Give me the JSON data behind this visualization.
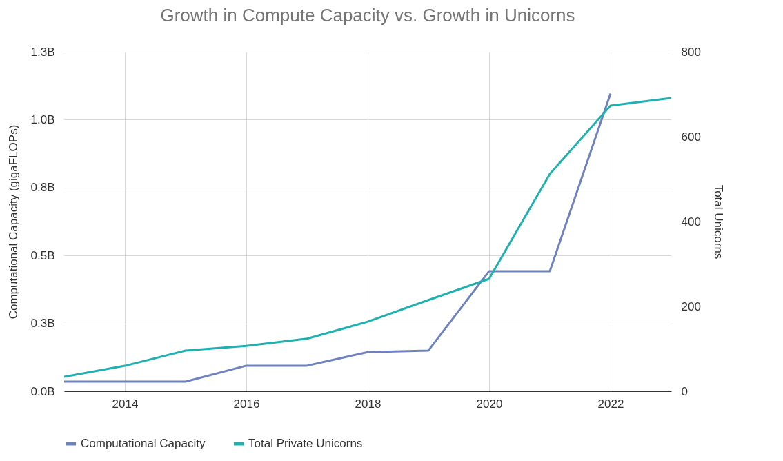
{
  "chart_data": {
    "type": "line",
    "title": "Growth in Compute Capacity vs. Growth in Unicorns",
    "ylabel": "Computational Capacity (gigaFLOPs)",
    "y2label": "Total Unicorns",
    "x": [
      2013,
      2014,
      2015,
      2016,
      2017,
      2018,
      2019,
      2020,
      2021,
      2022,
      2023
    ],
    "series": [
      {
        "name": "Computational Capacity",
        "color": "#6f82c0",
        "x": [
          2013,
          2014,
          2015,
          2016,
          2017,
          2018,
          2019,
          2020,
          2021,
          2022
        ],
        "values": [
          0.037,
          0.037,
          0.037,
          0.098,
          0.098,
          0.15,
          0.156,
          0.46,
          0.46,
          1.14
        ]
      },
      {
        "name": "Total Private Unicorns",
        "color": "#1fb0b0",
        "axis": "y2",
        "values": [
          34,
          60,
          96,
          107,
          124,
          164,
          215,
          265,
          512,
          673,
          691
        ]
      }
    ],
    "xlim": [
      2013,
      2023
    ],
    "xticks": [
      2014,
      2016,
      2018,
      2020,
      2022
    ],
    "ylim": [
      0,
      1.3
    ],
    "yticks": [
      {
        "value": 0,
        "label": "0.0B"
      },
      {
        "value": 0.26,
        "label": "0.3B"
      },
      {
        "value": 0.52,
        "label": "0.5B"
      },
      {
        "value": 0.78,
        "label": "0.8B"
      },
      {
        "value": 1.04,
        "label": "1.0B"
      },
      {
        "value": 1.3,
        "label": "1.3B"
      }
    ],
    "y2lim": [
      0,
      800
    ],
    "y2ticks": [
      0,
      200,
      400,
      600,
      800
    ],
    "grid": true,
    "legend": "bottom",
    "marker": "none",
    "line_style": "solid"
  }
}
